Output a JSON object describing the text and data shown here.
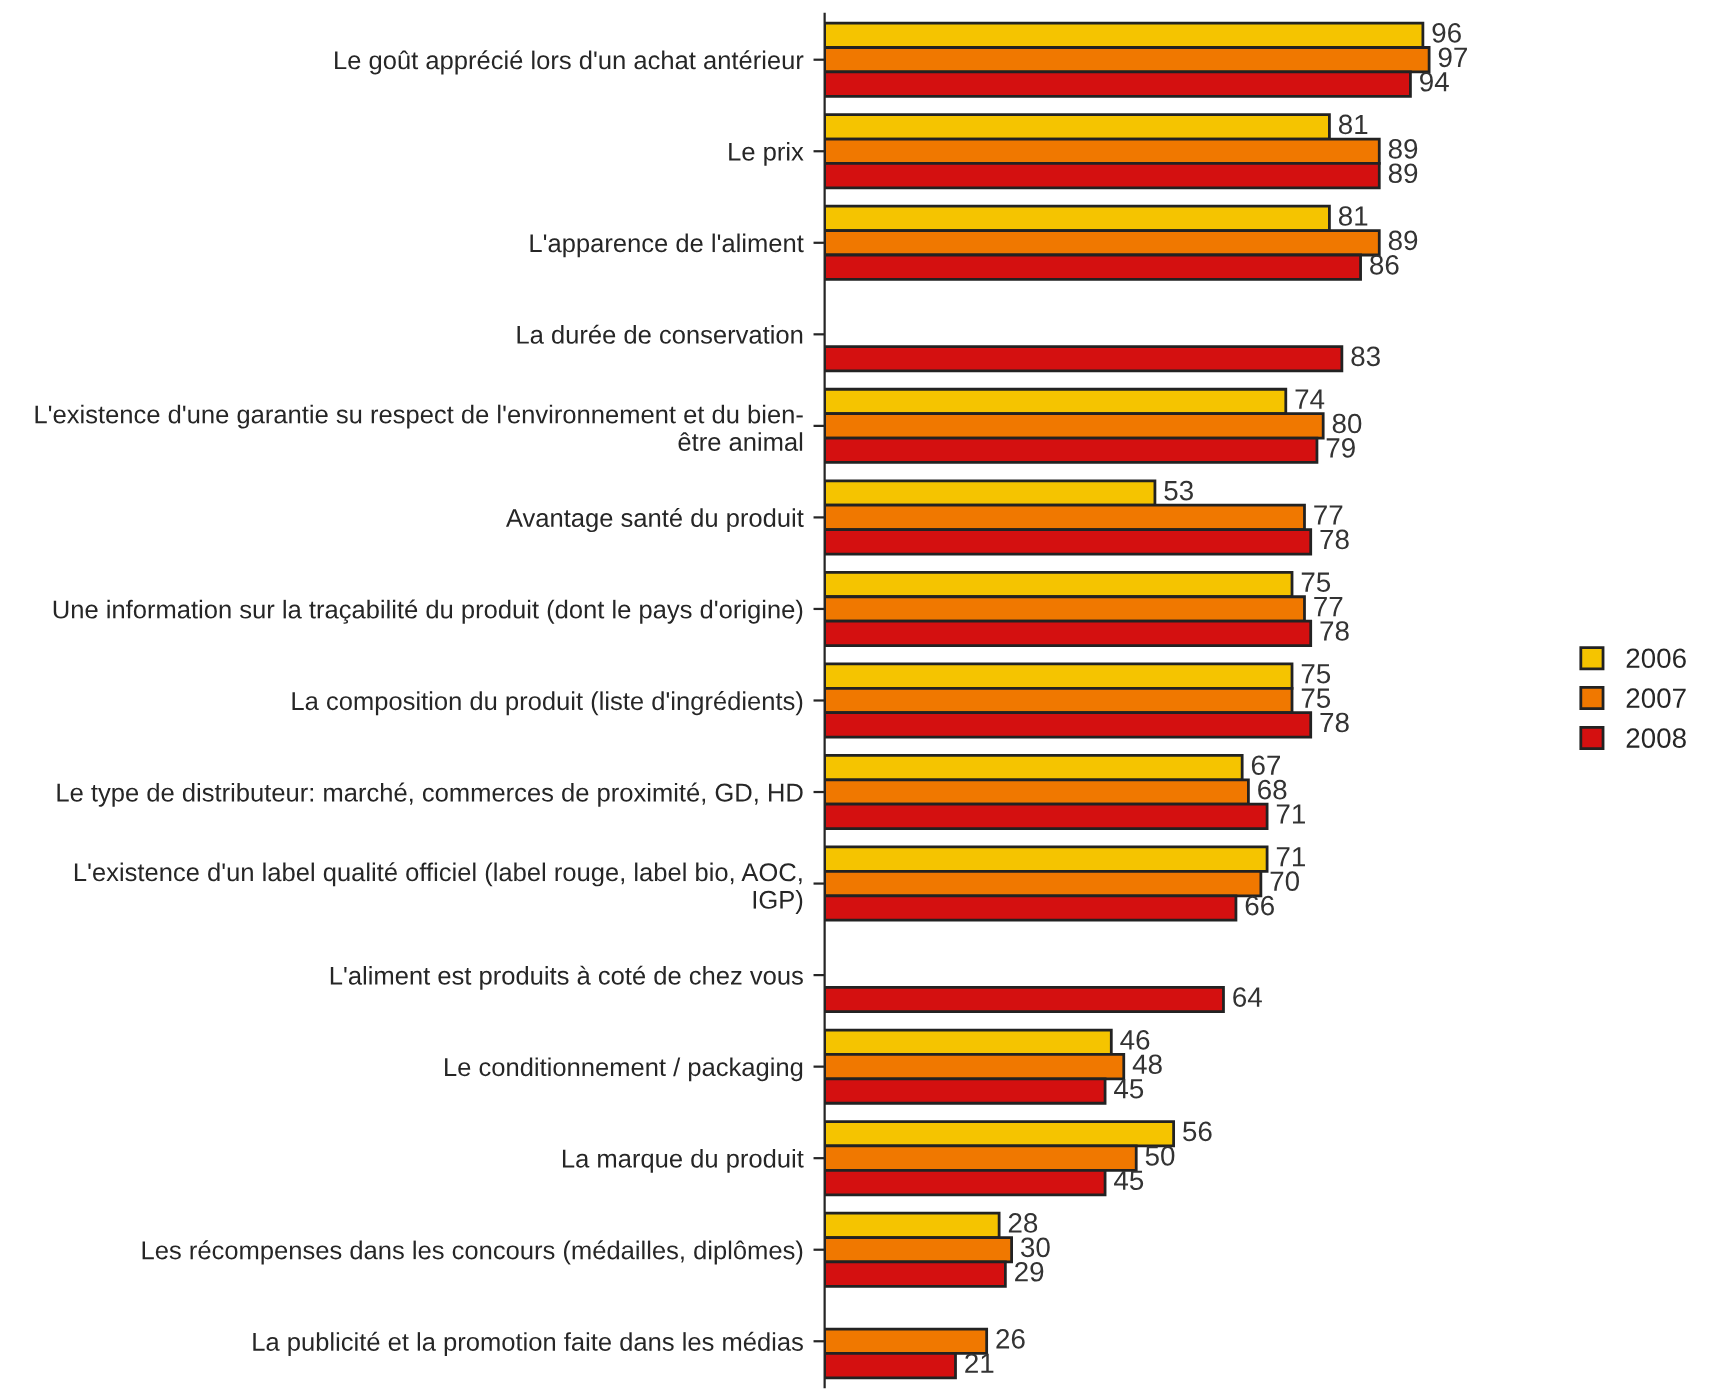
{
  "chart_data": {
    "type": "bar",
    "orientation": "horizontal",
    "categories": [
      "Le goût apprécié lors d'un achat antérieur",
      "Le prix",
      "L'apparence de l'aliment",
      "La durée de conservation",
      "L'existence d'une garantie su respect de l'environnement et du bien-\nêtre animal",
      "Avantage santé du produit",
      "Une information sur la traçabilité du produit (dont le pays d'origine)",
      "La composition du produit (liste d'ingrédients)",
      "Le type de distributeur: marché, commerces de proximité, GD, HD",
      "L'existence d'un label qualité officiel (label rouge, label bio, AOC,\nIGP)",
      "L'aliment est produits à coté de chez vous",
      "Le conditionnement / packaging",
      "La marque du produit",
      "Les récompenses dans les concours (médailles, diplômes)",
      "La publicité et la promotion faite dans les médias"
    ],
    "series": [
      {
        "name": "2006",
        "color": "#f5c400",
        "values": [
          96,
          81,
          81,
          null,
          74,
          53,
          75,
          75,
          67,
          71,
          null,
          46,
          56,
          28,
          null
        ]
      },
      {
        "name": "2007",
        "color": "#f07800",
        "values": [
          97,
          89,
          89,
          null,
          80,
          77,
          77,
          75,
          68,
          70,
          null,
          48,
          50,
          30,
          26
        ]
      },
      {
        "name": "2008",
        "color": "#d41010",
        "values": [
          94,
          89,
          86,
          83,
          79,
          78,
          78,
          78,
          71,
          66,
          64,
          45,
          45,
          29,
          21
        ]
      }
    ],
    "data_labels": true,
    "legend": "right",
    "grid": false
  }
}
